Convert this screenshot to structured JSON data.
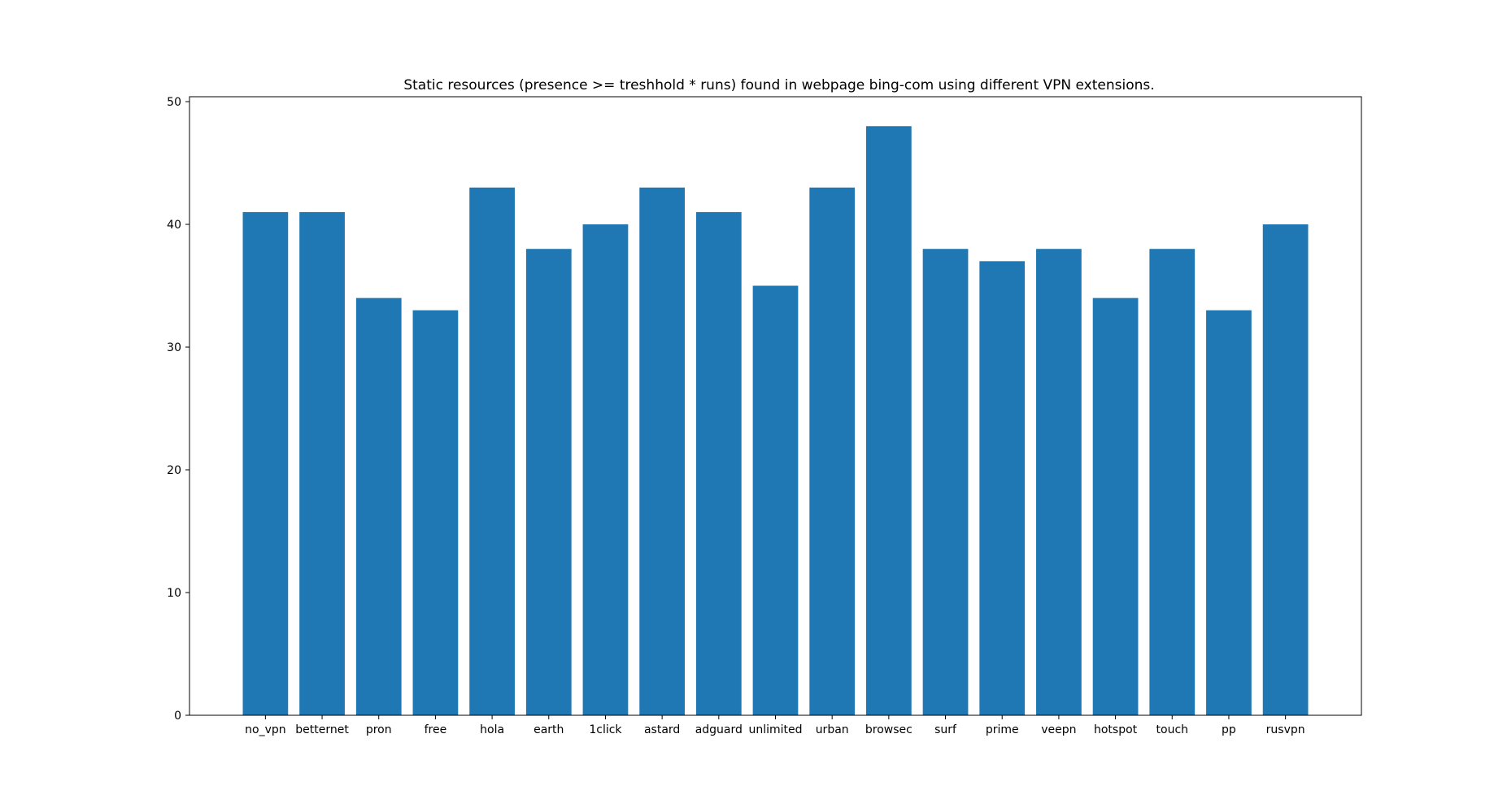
{
  "colors": {
    "bar": "#1f77b4",
    "axes": "#000000",
    "background": "#ffffff"
  },
  "chart_data": {
    "type": "bar",
    "title": "Static resources (presence >= treshhold * runs) found in webpage bing-com using different VPN extensions.",
    "xlabel": "",
    "ylabel": "",
    "categories": [
      "no_vpn",
      "betternet",
      "pron",
      "free",
      "hola",
      "earth",
      "1click",
      "astard",
      "adguard",
      "unlimited",
      "urban",
      "browsec",
      "surf",
      "prime",
      "veepn",
      "hotspot",
      "touch",
      "pp",
      "rusvpn"
    ],
    "values": [
      41,
      41,
      34,
      33,
      43,
      38,
      40,
      43,
      41,
      35,
      43,
      48,
      38,
      37,
      38,
      34,
      38,
      33,
      40
    ],
    "ylim": [
      0,
      50.4
    ],
    "yticks": [
      0,
      10,
      20,
      30,
      40,
      50
    ],
    "grid": false,
    "legend": false
  }
}
